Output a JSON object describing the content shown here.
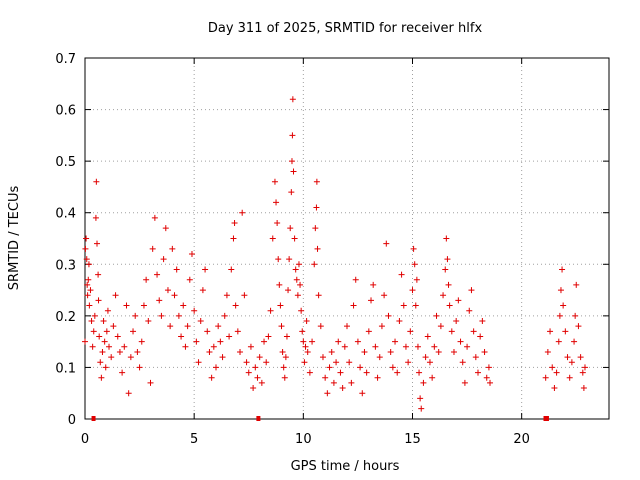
{
  "chart_data": {
    "type": "scatter",
    "title": "Day 311 of 2025, SRMTID for receiver hlfx",
    "xlabel": "GPS time / hours",
    "ylabel": "SRMTID / TECUs",
    "xlim": [
      0,
      24
    ],
    "ylim": [
      0,
      0.7
    ],
    "xticks": [
      0,
      5,
      10,
      15,
      20
    ],
    "yticks": [
      0,
      0.1,
      0.2,
      0.3,
      0.4,
      0.5,
      0.6,
      0.7
    ],
    "grid": true,
    "marker": "+",
    "color": "#e00000",
    "series": [
      {
        "name": "SRMTID",
        "points": [
          [
            0.0,
            0.15
          ],
          [
            0.02,
            0.33
          ],
          [
            0.05,
            0.35
          ],
          [
            0.08,
            0.31
          ],
          [
            0.1,
            0.26
          ],
          [
            0.12,
            0.24
          ],
          [
            0.15,
            0.27
          ],
          [
            0.18,
            0.3
          ],
          [
            0.2,
            0.22
          ],
          [
            0.25,
            0.25
          ],
          [
            0.3,
            0.19
          ],
          [
            0.35,
            0.14
          ],
          [
            0.4,
            0.17
          ],
          [
            0.45,
            0.2
          ],
          [
            0.5,
            0.39
          ],
          [
            0.52,
            0.46
          ],
          [
            0.55,
            0.34
          ],
          [
            0.6,
            0.28
          ],
          [
            0.62,
            0.23
          ],
          [
            0.65,
            0.16
          ],
          [
            0.7,
            0.11
          ],
          [
            0.75,
            0.08
          ],
          [
            0.8,
            0.13
          ],
          [
            0.85,
            0.19
          ],
          [
            0.9,
            0.15
          ],
          [
            0.95,
            0.1
          ],
          [
            1.0,
            0.17
          ],
          [
            1.05,
            0.21
          ],
          [
            1.1,
            0.14
          ],
          [
            1.2,
            0.12
          ],
          [
            1.3,
            0.18
          ],
          [
            1.4,
            0.24
          ],
          [
            1.5,
            0.16
          ],
          [
            1.6,
            0.13
          ],
          [
            1.7,
            0.09
          ],
          [
            1.8,
            0.14
          ],
          [
            1.9,
            0.22
          ],
          [
            2.0,
            0.05
          ],
          [
            2.1,
            0.12
          ],
          [
            2.2,
            0.17
          ],
          [
            2.3,
            0.2
          ],
          [
            2.4,
            0.13
          ],
          [
            2.5,
            0.1
          ],
          [
            2.6,
            0.15
          ],
          [
            2.7,
            0.22
          ],
          [
            2.8,
            0.27
          ],
          [
            2.9,
            0.19
          ],
          [
            3.0,
            0.07
          ],
          [
            3.1,
            0.33
          ],
          [
            3.2,
            0.39
          ],
          [
            3.3,
            0.28
          ],
          [
            3.4,
            0.23
          ],
          [
            3.5,
            0.2
          ],
          [
            3.6,
            0.31
          ],
          [
            3.7,
            0.37
          ],
          [
            3.8,
            0.25
          ],
          [
            3.9,
            0.18
          ],
          [
            4.0,
            0.33
          ],
          [
            4.1,
            0.24
          ],
          [
            4.2,
            0.29
          ],
          [
            4.3,
            0.2
          ],
          [
            4.4,
            0.16
          ],
          [
            4.5,
            0.22
          ],
          [
            4.6,
            0.14
          ],
          [
            4.7,
            0.18
          ],
          [
            4.8,
            0.27
          ],
          [
            4.9,
            0.32
          ],
          [
            5.0,
            0.21
          ],
          [
            5.1,
            0.15
          ],
          [
            5.2,
            0.11
          ],
          [
            5.3,
            0.19
          ],
          [
            5.4,
            0.25
          ],
          [
            5.5,
            0.29
          ],
          [
            5.6,
            0.17
          ],
          [
            5.7,
            0.13
          ],
          [
            5.8,
            0.08
          ],
          [
            5.9,
            0.14
          ],
          [
            6.0,
            0.1
          ],
          [
            6.1,
            0.18
          ],
          [
            6.2,
            0.15
          ],
          [
            6.3,
            0.12
          ],
          [
            6.4,
            0.2
          ],
          [
            6.5,
            0.24
          ],
          [
            6.6,
            0.16
          ],
          [
            6.7,
            0.29
          ],
          [
            6.8,
            0.35
          ],
          [
            6.85,
            0.38
          ],
          [
            6.9,
            0.22
          ],
          [
            7.0,
            0.17
          ],
          [
            7.1,
            0.13
          ],
          [
            7.2,
            0.4
          ],
          [
            7.3,
            0.24
          ],
          [
            7.4,
            0.11
          ],
          [
            7.5,
            0.09
          ],
          [
            7.6,
            0.14
          ],
          [
            7.7,
            0.06
          ],
          [
            7.8,
            0.1
          ],
          [
            7.9,
            0.08
          ],
          [
            8.0,
            0.12
          ],
          [
            8.1,
            0.07
          ],
          [
            8.2,
            0.15
          ],
          [
            8.3,
            0.11
          ],
          [
            8.4,
            0.16
          ],
          [
            8.5,
            0.21
          ],
          [
            8.6,
            0.35
          ],
          [
            8.7,
            0.46
          ],
          [
            8.75,
            0.42
          ],
          [
            8.8,
            0.38
          ],
          [
            8.85,
            0.31
          ],
          [
            8.9,
            0.26
          ],
          [
            8.95,
            0.22
          ],
          [
            9.0,
            0.18
          ],
          [
            9.05,
            0.13
          ],
          [
            9.1,
            0.1
          ],
          [
            9.15,
            0.08
          ],
          [
            9.2,
            0.12
          ],
          [
            9.25,
            0.16
          ],
          [
            9.3,
            0.25
          ],
          [
            9.35,
            0.31
          ],
          [
            9.4,
            0.37
          ],
          [
            9.45,
            0.44
          ],
          [
            9.48,
            0.5
          ],
          [
            9.5,
            0.55
          ],
          [
            9.52,
            0.62
          ],
          [
            9.55,
            0.48
          ],
          [
            9.6,
            0.35
          ],
          [
            9.65,
            0.29
          ],
          [
            9.7,
            0.27
          ],
          [
            9.75,
            0.24
          ],
          [
            9.8,
            0.3
          ],
          [
            9.85,
            0.26
          ],
          [
            9.9,
            0.21
          ],
          [
            9.95,
            0.17
          ],
          [
            10.0,
            0.15
          ],
          [
            10.05,
            0.11
          ],
          [
            10.1,
            0.14
          ],
          [
            10.15,
            0.19
          ],
          [
            10.2,
            0.13
          ],
          [
            10.3,
            0.09
          ],
          [
            10.4,
            0.15
          ],
          [
            10.5,
            0.3
          ],
          [
            10.55,
            0.37
          ],
          [
            10.6,
            0.41
          ],
          [
            10.62,
            0.46
          ],
          [
            10.65,
            0.33
          ],
          [
            10.7,
            0.24
          ],
          [
            10.8,
            0.18
          ],
          [
            10.9,
            0.12
          ],
          [
            11.0,
            0.08
          ],
          [
            11.1,
            0.05
          ],
          [
            11.2,
            0.1
          ],
          [
            11.3,
            0.13
          ],
          [
            11.4,
            0.07
          ],
          [
            11.5,
            0.11
          ],
          [
            11.6,
            0.15
          ],
          [
            11.7,
            0.09
          ],
          [
            11.8,
            0.06
          ],
          [
            11.9,
            0.14
          ],
          [
            12.0,
            0.18
          ],
          [
            12.1,
            0.11
          ],
          [
            12.2,
            0.07
          ],
          [
            12.3,
            0.22
          ],
          [
            12.4,
            0.27
          ],
          [
            12.5,
            0.15
          ],
          [
            12.6,
            0.1
          ],
          [
            12.7,
            0.05
          ],
          [
            12.8,
            0.13
          ],
          [
            12.9,
            0.09
          ],
          [
            13.0,
            0.17
          ],
          [
            13.1,
            0.23
          ],
          [
            13.2,
            0.26
          ],
          [
            13.3,
            0.14
          ],
          [
            13.4,
            0.08
          ],
          [
            13.5,
            0.12
          ],
          [
            13.6,
            0.18
          ],
          [
            13.7,
            0.24
          ],
          [
            13.8,
            0.34
          ],
          [
            13.9,
            0.2
          ],
          [
            14.0,
            0.13
          ],
          [
            14.1,
            0.1
          ],
          [
            14.2,
            0.15
          ],
          [
            14.3,
            0.09
          ],
          [
            14.4,
            0.19
          ],
          [
            14.5,
            0.28
          ],
          [
            14.6,
            0.22
          ],
          [
            14.7,
            0.14
          ],
          [
            14.8,
            0.11
          ],
          [
            14.9,
            0.17
          ],
          [
            15.0,
            0.25
          ],
          [
            15.05,
            0.33
          ],
          [
            15.1,
            0.3
          ],
          [
            15.15,
            0.22
          ],
          [
            15.2,
            0.27
          ],
          [
            15.25,
            0.14
          ],
          [
            15.3,
            0.09
          ],
          [
            15.35,
            0.04
          ],
          [
            15.4,
            0.02
          ],
          [
            15.5,
            0.07
          ],
          [
            15.6,
            0.12
          ],
          [
            15.7,
            0.16
          ],
          [
            15.8,
            0.11
          ],
          [
            15.9,
            0.08
          ],
          [
            16.0,
            0.14
          ],
          [
            16.1,
            0.2
          ],
          [
            16.2,
            0.13
          ],
          [
            16.3,
            0.18
          ],
          [
            16.4,
            0.24
          ],
          [
            16.5,
            0.29
          ],
          [
            16.55,
            0.35
          ],
          [
            16.6,
            0.31
          ],
          [
            16.65,
            0.26
          ],
          [
            16.7,
            0.22
          ],
          [
            16.8,
            0.17
          ],
          [
            16.9,
            0.13
          ],
          [
            17.0,
            0.19
          ],
          [
            17.1,
            0.23
          ],
          [
            17.2,
            0.15
          ],
          [
            17.3,
            0.11
          ],
          [
            17.4,
            0.07
          ],
          [
            17.5,
            0.14
          ],
          [
            17.6,
            0.21
          ],
          [
            17.7,
            0.25
          ],
          [
            17.8,
            0.17
          ],
          [
            17.9,
            0.12
          ],
          [
            18.0,
            0.09
          ],
          [
            18.1,
            0.16
          ],
          [
            18.2,
            0.19
          ],
          [
            18.3,
            0.13
          ],
          [
            18.4,
            0.08
          ],
          [
            18.5,
            0.1
          ],
          [
            18.55,
            0.07
          ],
          [
            21.1,
            0.08
          ],
          [
            21.2,
            0.13
          ],
          [
            21.3,
            0.17
          ],
          [
            21.4,
            0.1
          ],
          [
            21.5,
            0.06
          ],
          [
            21.6,
            0.09
          ],
          [
            21.7,
            0.15
          ],
          [
            21.75,
            0.2
          ],
          [
            21.8,
            0.25
          ],
          [
            21.85,
            0.29
          ],
          [
            21.9,
            0.22
          ],
          [
            22.0,
            0.17
          ],
          [
            22.1,
            0.12
          ],
          [
            22.2,
            0.08
          ],
          [
            22.3,
            0.11
          ],
          [
            22.4,
            0.15
          ],
          [
            22.45,
            0.2
          ],
          [
            22.5,
            0.26
          ],
          [
            22.6,
            0.18
          ],
          [
            22.7,
            0.12
          ],
          [
            22.8,
            0.09
          ],
          [
            22.85,
            0.06
          ],
          [
            22.9,
            0.1
          ]
        ]
      }
    ],
    "zero_markers": [
      {
        "x_start": 0.3,
        "x_end": 0.36
      },
      {
        "x_start": 7.85,
        "x_end": 7.92
      },
      {
        "x_start": 21.0,
        "x_end": 21.25
      }
    ]
  }
}
